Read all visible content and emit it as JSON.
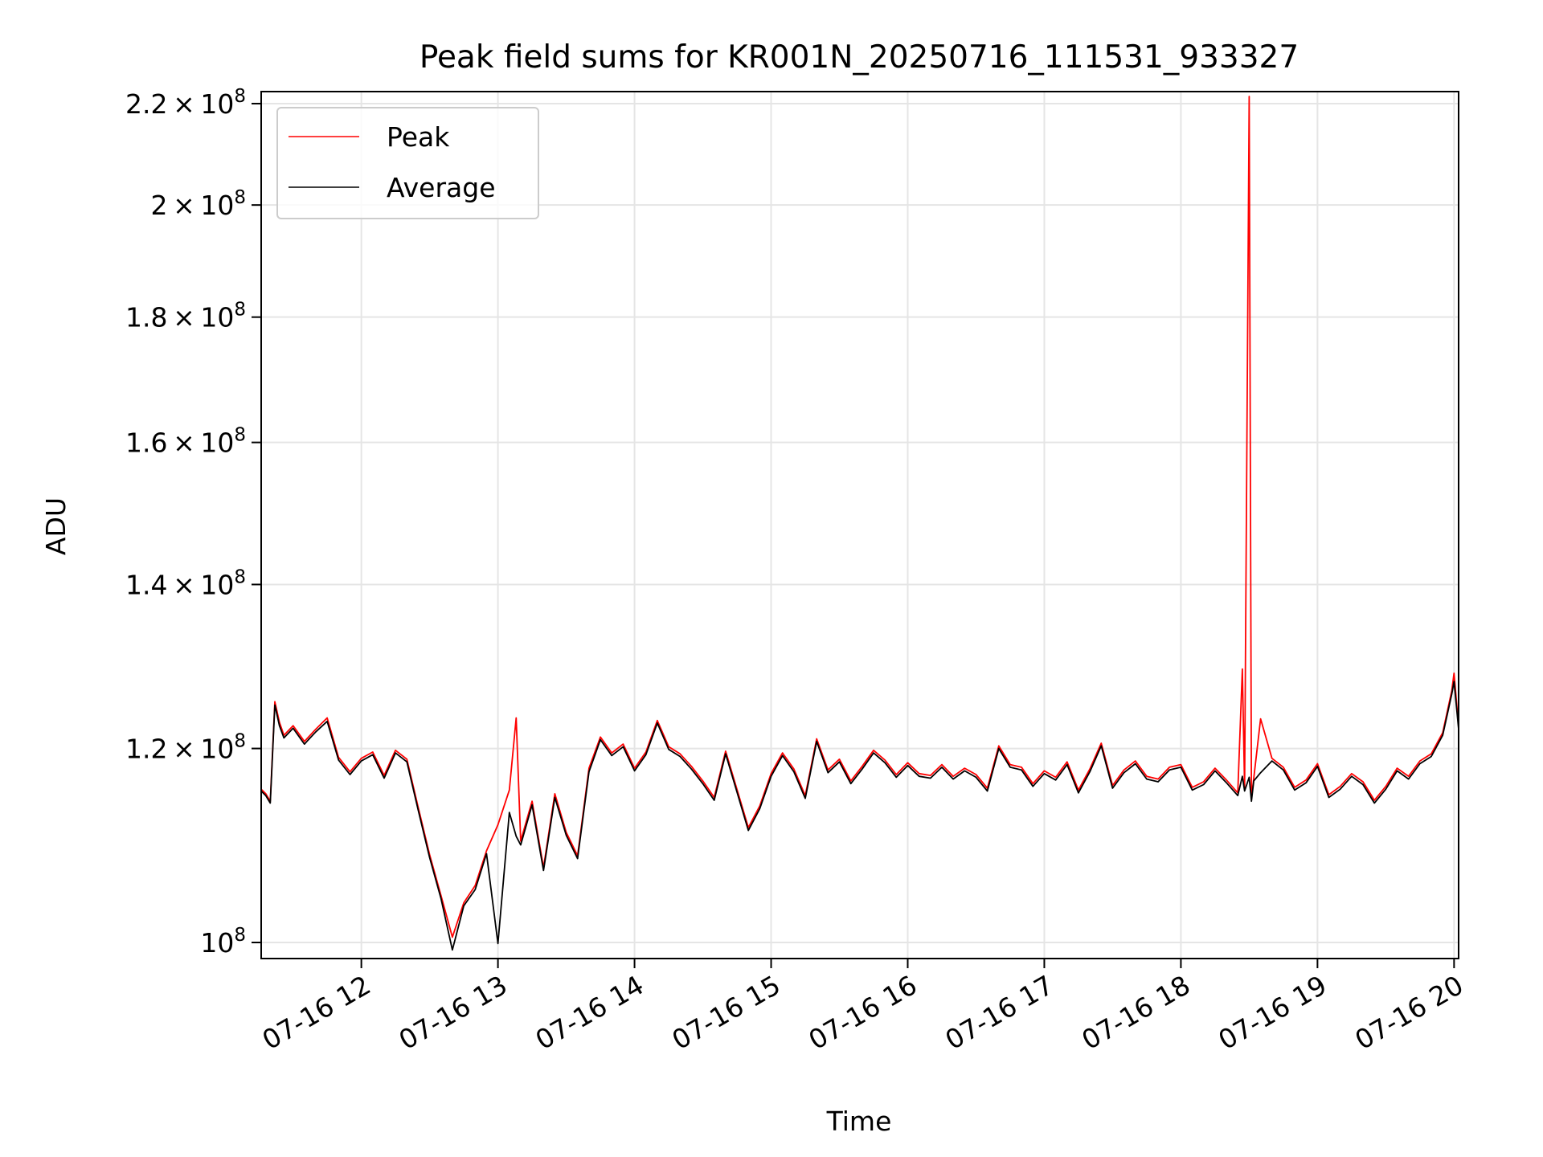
{
  "chart_data": {
    "type": "line",
    "title": "Peak field sums for KR001N_20250716_111531_933327",
    "xlabel": "Time",
    "ylabel": "ADU",
    "yscale": "log",
    "grid": true,
    "legend_position": "top-left",
    "xlim": [
      "07-16 11:16",
      "07-16 20:02"
    ],
    "ylim": [
      98500000,
      222500000
    ],
    "x_ticks": [
      "07-16 12",
      "07-16 13",
      "07-16 14",
      "07-16 15",
      "07-16 16",
      "07-16 17",
      "07-16 18",
      "07-16 19",
      "07-16 20"
    ],
    "y_ticks": [
      {
        "value": 100000000,
        "mantissa": "",
        "exp": "8"
      },
      {
        "value": 120000000,
        "mantissa": "1.2",
        "exp": "8"
      },
      {
        "value": 140000000,
        "mantissa": "1.4",
        "exp": "8"
      },
      {
        "value": 160000000,
        "mantissa": "1.6",
        "exp": "8"
      },
      {
        "value": 180000000,
        "mantissa": "1.8",
        "exp": "8"
      },
      {
        "value": 200000000,
        "mantissa": "2",
        "exp": "8"
      },
      {
        "value": 220000000,
        "mantissa": "2.2",
        "exp": "8"
      }
    ],
    "series": [
      {
        "name": "Peak",
        "color": "#ff0000",
        "x": [
          "07-16 11:16",
          "07-16 11:18",
          "07-16 11:20",
          "07-16 11:22",
          "07-16 11:24",
          "07-16 11:26",
          "07-16 11:30",
          "07-16 11:35",
          "07-16 11:40",
          "07-16 11:45",
          "07-16 11:50",
          "07-16 11:55",
          "07-16 12:00",
          "07-16 12:05",
          "07-16 12:10",
          "07-16 12:15",
          "07-16 12:20",
          "07-16 12:25",
          "07-16 12:30",
          "07-16 12:35",
          "07-16 12:40",
          "07-16 12:45",
          "07-16 12:50",
          "07-16 12:55",
          "07-16 13:00",
          "07-16 13:05",
          "07-16 13:08",
          "07-16 13:10",
          "07-16 13:15",
          "07-16 13:20",
          "07-16 13:25",
          "07-16 13:30",
          "07-16 13:35",
          "07-16 13:40",
          "07-16 13:45",
          "07-16 13:50",
          "07-16 13:55",
          "07-16 14:00",
          "07-16 14:05",
          "07-16 14:10",
          "07-16 14:15",
          "07-16 14:20",
          "07-16 14:25",
          "07-16 14:30",
          "07-16 14:35",
          "07-16 14:40",
          "07-16 14:45",
          "07-16 14:50",
          "07-16 14:55",
          "07-16 15:00",
          "07-16 15:05",
          "07-16 15:10",
          "07-16 15:15",
          "07-16 15:20",
          "07-16 15:25",
          "07-16 15:30",
          "07-16 15:35",
          "07-16 15:40",
          "07-16 15:45",
          "07-16 15:50",
          "07-16 15:55",
          "07-16 16:00",
          "07-16 16:05",
          "07-16 16:10",
          "07-16 16:15",
          "07-16 16:20",
          "07-16 16:25",
          "07-16 16:30",
          "07-16 16:35",
          "07-16 16:40",
          "07-16 16:45",
          "07-16 16:50",
          "07-16 16:55",
          "07-16 17:00",
          "07-16 17:05",
          "07-16 17:10",
          "07-16 17:15",
          "07-16 17:20",
          "07-16 17:25",
          "07-16 17:30",
          "07-16 17:35",
          "07-16 17:40",
          "07-16 17:45",
          "07-16 17:50",
          "07-16 17:55",
          "07-16 18:00",
          "07-16 18:05",
          "07-16 18:10",
          "07-16 18:15",
          "07-16 18:20",
          "07-16 18:25",
          "07-16 18:27",
          "07-16 18:28",
          "07-16 18:30",
          "07-16 18:31",
          "07-16 18:32",
          "07-16 18:35",
          "07-16 18:40",
          "07-16 18:45",
          "07-16 18:50",
          "07-16 18:55",
          "07-16 19:00",
          "07-16 19:05",
          "07-16 19:10",
          "07-16 19:15",
          "07-16 19:20",
          "07-16 19:25",
          "07-16 19:30",
          "07-16 19:35",
          "07-16 19:40",
          "07-16 19:45",
          "07-16 19:50",
          "07-16 19:55",
          "07-16 19:59",
          "07-16 20:00",
          "07-16 20:02"
        ],
        "y": [
          115500000,
          115000000,
          114200000,
          125400000,
          123000000,
          121500000,
          122600000,
          120800000,
          122200000,
          123500000,
          119000000,
          117400000,
          118900000,
          119600000,
          117000000,
          119800000,
          118800000,
          113500000,
          108600000,
          104500000,
          100500000,
          103800000,
          105500000,
          109000000,
          111700000,
          115400000,
          123500000,
          110000000,
          114200000,
          107300000,
          115000000,
          110900000,
          108500000,
          117800000,
          121300000,
          119500000,
          120500000,
          117800000,
          119600000,
          123200000,
          120200000,
          119400000,
          118000000,
          116400000,
          114600000,
          119700000,
          115500000,
          111400000,
          113700000,
          117200000,
          119500000,
          117700000,
          114800000,
          121100000,
          117600000,
          118800000,
          116400000,
          118000000,
          119800000,
          118700000,
          117100000,
          118400000,
          117200000,
          117000000,
          118200000,
          116900000,
          117800000,
          117100000,
          115600000,
          120300000,
          118200000,
          117900000,
          116100000,
          117500000,
          116800000,
          118500000,
          115400000,
          117700000,
          120600000,
          115900000,
          117600000,
          118600000,
          116900000,
          116600000,
          117900000,
          118200000,
          115700000,
          116300000,
          117800000,
          116500000,
          115100000,
          129300000,
          115600000,
          221500000,
          114500000,
          116700000,
          123400000,
          118900000,
          117900000,
          115700000,
          116500000,
          118300000,
          114900000,
          115800000,
          117200000,
          116300000,
          114300000,
          115800000,
          117800000,
          116900000,
          118600000,
          119400000,
          121800000,
          126700000,
          128800000,
          122500000
        ]
      },
      {
        "name": "Average",
        "color": "#000000",
        "x": [
          "07-16 11:16",
          "07-16 11:18",
          "07-16 11:20",
          "07-16 11:22",
          "07-16 11:24",
          "07-16 11:26",
          "07-16 11:30",
          "07-16 11:35",
          "07-16 11:40",
          "07-16 11:45",
          "07-16 11:50",
          "07-16 11:55",
          "07-16 12:00",
          "07-16 12:05",
          "07-16 12:10",
          "07-16 12:15",
          "07-16 12:20",
          "07-16 12:25",
          "07-16 12:30",
          "07-16 12:35",
          "07-16 12:40",
          "07-16 12:45",
          "07-16 12:50",
          "07-16 12:55",
          "07-16 13:00",
          "07-16 13:05",
          "07-16 13:08",
          "07-16 13:10",
          "07-16 13:15",
          "07-16 13:20",
          "07-16 13:25",
          "07-16 13:30",
          "07-16 13:35",
          "07-16 13:40",
          "07-16 13:45",
          "07-16 13:50",
          "07-16 13:55",
          "07-16 14:00",
          "07-16 14:05",
          "07-16 14:10",
          "07-16 14:15",
          "07-16 14:20",
          "07-16 14:25",
          "07-16 14:30",
          "07-16 14:35",
          "07-16 14:40",
          "07-16 14:45",
          "07-16 14:50",
          "07-16 14:55",
          "07-16 15:00",
          "07-16 15:05",
          "07-16 15:10",
          "07-16 15:15",
          "07-16 15:20",
          "07-16 15:25",
          "07-16 15:30",
          "07-16 15:35",
          "07-16 15:40",
          "07-16 15:45",
          "07-16 15:50",
          "07-16 15:55",
          "07-16 16:00",
          "07-16 16:05",
          "07-16 16:10",
          "07-16 16:15",
          "07-16 16:20",
          "07-16 16:25",
          "07-16 16:30",
          "07-16 16:35",
          "07-16 16:40",
          "07-16 16:45",
          "07-16 16:50",
          "07-16 16:55",
          "07-16 17:00",
          "07-16 17:05",
          "07-16 17:10",
          "07-16 17:15",
          "07-16 17:20",
          "07-16 17:25",
          "07-16 17:30",
          "07-16 17:35",
          "07-16 17:40",
          "07-16 17:45",
          "07-16 17:50",
          "07-16 17:55",
          "07-16 18:00",
          "07-16 18:05",
          "07-16 18:10",
          "07-16 18:15",
          "07-16 18:20",
          "07-16 18:25",
          "07-16 18:27",
          "07-16 18:28",
          "07-16 18:30",
          "07-16 18:31",
          "07-16 18:32",
          "07-16 18:35",
          "07-16 18:40",
          "07-16 18:45",
          "07-16 18:50",
          "07-16 18:55",
          "07-16 19:00",
          "07-16 19:05",
          "07-16 19:10",
          "07-16 19:15",
          "07-16 19:20",
          "07-16 19:25",
          "07-16 19:30",
          "07-16 19:35",
          "07-16 19:40",
          "07-16 19:45",
          "07-16 19:50",
          "07-16 19:55",
          "07-16 19:59",
          "07-16 20:00",
          "07-16 20:02"
        ],
        "y": [
          115300000,
          114800000,
          114000000,
          125000000,
          122600000,
          121200000,
          122300000,
          120500000,
          121900000,
          123100000,
          118700000,
          117100000,
          118600000,
          119300000,
          116700000,
          119500000,
          118500000,
          113200000,
          108300000,
          104200000,
          99300000,
          103500000,
          105100000,
          108700000,
          99900000,
          113000000,
          110500000,
          109600000,
          113800000,
          107000000,
          114600000,
          110600000,
          108200000,
          117400000,
          121000000,
          119200000,
          120200000,
          117500000,
          119300000,
          122900000,
          119900000,
          119100000,
          117700000,
          116100000,
          114300000,
          119400000,
          115200000,
          111100000,
          113400000,
          116900000,
          119200000,
          117400000,
          114500000,
          120800000,
          117300000,
          118500000,
          116100000,
          117700000,
          119500000,
          118400000,
          116800000,
          118100000,
          116900000,
          116700000,
          117900000,
          116600000,
          117500000,
          116800000,
          115300000,
          120000000,
          117900000,
          117600000,
          115800000,
          117200000,
          116500000,
          118200000,
          115100000,
          117400000,
          120300000,
          115600000,
          117300000,
          118300000,
          116600000,
          116300000,
          117600000,
          117900000,
          115400000,
          116000000,
          117500000,
          116200000,
          114800000,
          116900000,
          115300000,
          116800000,
          114200000,
          116400000,
          117300000,
          118600000,
          117600000,
          115400000,
          116200000,
          118000000,
          114600000,
          115500000,
          116900000,
          116000000,
          114000000,
          115500000,
          117500000,
          116600000,
          118300000,
          119100000,
          121500000,
          126300000,
          127800000,
          122200000
        ]
      }
    ]
  }
}
